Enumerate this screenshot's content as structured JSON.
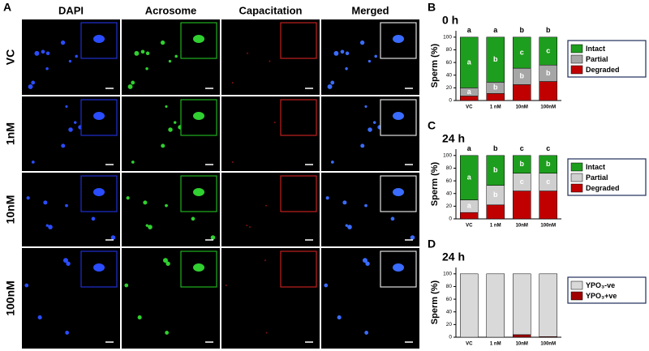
{
  "panel_a": {
    "letter": "A",
    "columns": [
      "DAPI",
      "Acrosome",
      "Capacitation",
      "Merged"
    ],
    "rows": [
      "VC",
      "1nM",
      "10nM",
      "100nM"
    ]
  },
  "chart_data": [
    {
      "type": "bar",
      "stacked": true,
      "letter": "B",
      "title": "0 h",
      "y_label": "Sperm (%)",
      "categories": [
        "VC",
        "1 nM",
        "10nM",
        "100nM"
      ],
      "ylim": [
        0,
        110
      ],
      "yticks": [
        0,
        20,
        40,
        60,
        80,
        100
      ],
      "series": [
        {
          "name": "Degraded",
          "color": "#c00000",
          "values": [
            7,
            11,
            25,
            30
          ]
        },
        {
          "name": "Partial",
          "color": "#a6a6a6",
          "values": [
            13,
            18,
            26,
            26
          ],
          "letters": [
            "a",
            "b",
            "b",
            "b"
          ]
        },
        {
          "name": "Intact",
          "color": "#1e9e1e",
          "values": [
            80,
            71,
            49,
            44
          ],
          "letters": [
            "a",
            "b",
            "c",
            "c"
          ]
        }
      ],
      "top_letters": [
        "a",
        "a",
        "b",
        "b"
      ]
    },
    {
      "type": "bar",
      "stacked": true,
      "letter": "C",
      "title": "24 h",
      "y_label": "Sperm (%)",
      "categories": [
        "VC",
        "1 nM",
        "10nM",
        "100nM"
      ],
      "ylim": [
        0,
        110
      ],
      "yticks": [
        0,
        20,
        40,
        60,
        80,
        100
      ],
      "series": [
        {
          "name": "Degraded",
          "color": "#c00000",
          "values": [
            10,
            22,
            44,
            44
          ]
        },
        {
          "name": "Partial",
          "color": "#cfcfcf",
          "values": [
            20,
            31,
            28,
            28
          ],
          "letters": [
            "a",
            "b",
            "c",
            "c"
          ]
        },
        {
          "name": "Intact",
          "color": "#1e9e1e",
          "values": [
            70,
            47,
            28,
            28
          ],
          "letters": [
            "a",
            "b",
            "b",
            "b"
          ]
        }
      ],
      "top_letters": [
        "a",
        "b",
        "c",
        "c"
      ]
    },
    {
      "type": "bar",
      "stacked": true,
      "letter": "D",
      "title": "24 h",
      "y_label": "Sperm (%)",
      "categories": [
        "VC",
        "1 nM",
        "10nM",
        "100nM"
      ],
      "ylim": [
        0,
        110
      ],
      "yticks": [
        0,
        20,
        40,
        60,
        80,
        100
      ],
      "series": [
        {
          "name": "YPO₃+ve",
          "color": "#a00000",
          "values": [
            0,
            0,
            4,
            1
          ]
        },
        {
          "name": "YPO₃-ve",
          "color": "#d9d9d9",
          "values": [
            100,
            100,
            96,
            99
          ]
        }
      ]
    }
  ]
}
